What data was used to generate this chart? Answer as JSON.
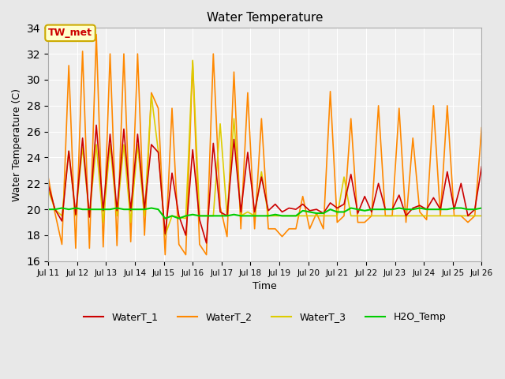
{
  "title": "Water Temperature",
  "xlabel": "Time",
  "ylabel": "Water Temperature (C)",
  "ylim": [
    16,
    34
  ],
  "yticks": [
    16,
    18,
    20,
    22,
    24,
    26,
    28,
    30,
    32,
    34
  ],
  "x_start": 11,
  "x_end": 26,
  "x_tick_positions": [
    11,
    12,
    13,
    14,
    15,
    16,
    17,
    18,
    19,
    20,
    21,
    22,
    23,
    24,
    25,
    26
  ],
  "x_tick_labels": [
    "Jul 11",
    "Jul 12",
    "Jul 13",
    "Jul 14",
    "Jul 15",
    "Jul 16",
    "Jul 17",
    "Jul 18",
    "Jul 19",
    "Jul 20",
    "Jul 21",
    "Jul 22",
    "Jul 23",
    "Jul 24",
    "Jul 25",
    "Jul 26"
  ],
  "annotation_text": "TW_met",
  "annotation_bg": "#ffffcc",
  "annotation_border": "#ccaa00",
  "annotation_text_color": "#cc0000",
  "colors": {
    "WaterT_1": "#cc0000",
    "WaterT_2": "#ff8800",
    "WaterT_3": "#ddcc00",
    "H2O_Temp": "#00cc00"
  },
  "bg_color": "#e8e8e8",
  "plot_bg": "#f0f0f0",
  "grid_color": "#ffffff",
  "WaterT_1": [
    21.9,
    20.0,
    19.1,
    24.5,
    19.6,
    25.5,
    19.4,
    26.5,
    19.9,
    25.8,
    19.9,
    26.2,
    19.9,
    25.8,
    20.0,
    25.0,
    24.4,
    18.1,
    22.8,
    19.5,
    18.0,
    24.6,
    19.2,
    17.4,
    25.1,
    19.8,
    19.5,
    25.4,
    19.8,
    24.4,
    19.8,
    22.5,
    19.9,
    20.4,
    19.8,
    20.1,
    20.0,
    20.4,
    19.9,
    20.0,
    19.7,
    20.5,
    20.1,
    20.4,
    22.7,
    19.7,
    21.0,
    19.8,
    22.0,
    20.0,
    20.0,
    21.1,
    19.5,
    20.1,
    20.3,
    20.0,
    20.9,
    20.0,
    22.9,
    20.0,
    22.0,
    19.5,
    20.0,
    23.3
  ],
  "WaterT_2": [
    22.5,
    19.7,
    17.3,
    31.1,
    17.0,
    32.2,
    17.0,
    33.5,
    17.1,
    32.0,
    17.2,
    32.0,
    17.5,
    32.0,
    18.0,
    29.0,
    27.8,
    16.5,
    27.8,
    17.3,
    16.5,
    31.4,
    17.3,
    16.5,
    32.0,
    20.2,
    17.9,
    30.6,
    18.5,
    29.0,
    18.5,
    27.0,
    18.5,
    18.5,
    17.9,
    18.5,
    18.5,
    21.0,
    18.5,
    19.7,
    18.5,
    29.1,
    19.0,
    19.5,
    27.0,
    19.0,
    19.0,
    19.5,
    28.0,
    19.5,
    19.5,
    27.8,
    19.0,
    25.5,
    19.8,
    19.2,
    28.0,
    19.5,
    28.0,
    19.5,
    19.5,
    19.0,
    19.5,
    26.3
  ],
  "WaterT_3": [
    21.5,
    20.0,
    19.5,
    24.5,
    19.5,
    24.8,
    19.5,
    25.0,
    19.0,
    25.0,
    19.5,
    25.0,
    19.0,
    25.0,
    19.5,
    28.8,
    24.5,
    18.0,
    19.5,
    19.4,
    19.3,
    31.5,
    19.5,
    19.5,
    19.5,
    26.6,
    19.5,
    27.0,
    19.5,
    19.8,
    19.5,
    22.9,
    19.5,
    19.5,
    19.5,
    19.5,
    19.5,
    19.5,
    19.5,
    19.5,
    19.5,
    19.5,
    19.5,
    22.5,
    19.5,
    19.5,
    19.5,
    19.5,
    19.5,
    19.5,
    19.5,
    19.5,
    19.5,
    19.5,
    19.5,
    19.5,
    19.5,
    19.5,
    19.5,
    19.5,
    19.5,
    19.5,
    19.5,
    19.5
  ],
  "H2O_Temp": [
    20.0,
    20.0,
    20.1,
    20.0,
    20.1,
    20.0,
    20.0,
    20.0,
    20.0,
    20.0,
    20.1,
    20.0,
    20.0,
    20.0,
    20.0,
    20.1,
    20.0,
    19.3,
    19.5,
    19.3,
    19.5,
    19.6,
    19.5,
    19.5,
    19.5,
    19.5,
    19.5,
    19.6,
    19.5,
    19.5,
    19.5,
    19.5,
    19.5,
    19.6,
    19.5,
    19.5,
    19.5,
    19.9,
    19.8,
    19.7,
    19.7,
    20.0,
    19.8,
    19.8,
    20.1,
    20.0,
    19.9,
    20.0,
    20.0,
    20.0,
    20.0,
    20.1,
    20.0,
    20.0,
    20.1,
    20.0,
    20.0,
    20.0,
    20.0,
    20.1,
    20.1,
    20.0,
    20.0,
    20.1
  ]
}
